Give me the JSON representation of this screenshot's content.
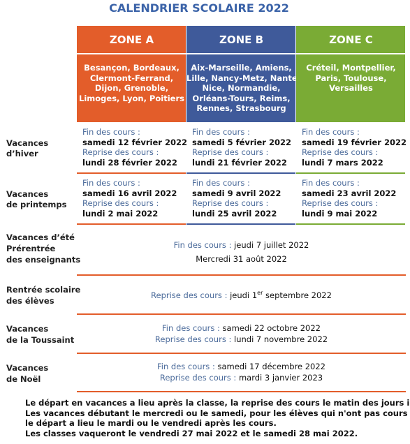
{
  "title": "CALENDRIER SCOLAIRE 2022",
  "zones": [
    {
      "name": "ZONE A",
      "cities": [
        "Besançon, Bordeaux,",
        "Clermont-Ferrand,",
        "Dijon, Grenoble,",
        "Limoges, Lyon, Poitiers"
      ]
    },
    {
      "name": "ZONE B",
      "cities": [
        "Aix-Marseille, Amiens,",
        "Lille, Nancy-Metz, Nantes,",
        "Nice, Normandie,",
        "Orléans-Tours, Reims,",
        "Rennes, Strasbourg"
      ]
    },
    {
      "name": "ZONE C",
      "cities": [
        "Créteil, Montpellier,",
        "Paris, Toulouse,",
        "Versailles"
      ]
    }
  ],
  "zone_rows": [
    {
      "label": [
        "Vacances",
        "d’hiver"
      ],
      "cells": [
        [
          "Fin des cours :",
          "samedi 12 février 2022",
          "Reprise des cours :",
          "lundi 28 février 2022"
        ],
        [
          "Fin des cours :",
          "samedi 5 février 2022",
          "Reprise des cours :",
          "lundi 21 février 2022"
        ],
        [
          "Fin des cours :",
          "samedi 19 février 2022",
          "Reprise des cours :",
          "lundi 7 mars 2022"
        ]
      ]
    },
    {
      "label": [
        "Vacances",
        "de printemps"
      ],
      "cells": [
        [
          "Fin des cours :",
          "samedi 16 avril 2022",
          "Reprise des cours :",
          "lundi 2 mai 2022"
        ],
        [
          "Fin des cours :",
          "samedi 9 avril 2022",
          "Reprise des cours :",
          "lundi 25 avril 2022"
        ],
        [
          "Fin des cours :",
          "samedi 23 avril 2022",
          "Reprise des cours :",
          "lundi 9 mai 2022"
        ]
      ]
    }
  ],
  "common_rows": [
    {
      "label": [
        "Vacances  d’été",
        "Prérentrée",
        "des enseignants"
      ],
      "lines": [
        {
          "label": "Fin des cours :",
          "value": "jeudi 7 juillet 2022"
        },
        {
          "value": "Mercredi 31 août 2022"
        }
      ]
    },
    {
      "label": [
        "Rentrée scolaire",
        "des élèves"
      ],
      "lines": [
        {
          "label": "Reprise des cours :",
          "value": "jeudi 1",
          "sup": "er",
          "rest": "septembre 2022"
        }
      ]
    },
    {
      "label": [
        "Vacances",
        "de la Toussaint"
      ],
      "lines": [
        {
          "label": "Fin des cours :",
          "value": "samedi 22 octobre 2022"
        },
        {
          "label": "Reprise des cours :",
          "value": "lundi 7 novembre 2022"
        }
      ]
    },
    {
      "label": [
        "Vacances",
        "de Noël"
      ],
      "lines": [
        {
          "label": "Fin des cours :",
          "value": "samedi 17 décembre 2022"
        },
        {
          "label": "Reprise des cours :",
          "value": "mardi 3 janvier 2023"
        }
      ]
    }
  ],
  "notes": [
    "Le départ en vacances a lieu après la classe, la reprise des cours le matin des jours indiqués.",
    "Les vacances débutant le mercredi ou le samedi, pour les élèves qui n'ont pas cours ce jour-là,",
    "le départ a lieu le mardi ou le vendredi après les cours.",
    "Les classes vaqueront le vendredi 27 mai 2022 et le samedi 28 mai 2022."
  ]
}
